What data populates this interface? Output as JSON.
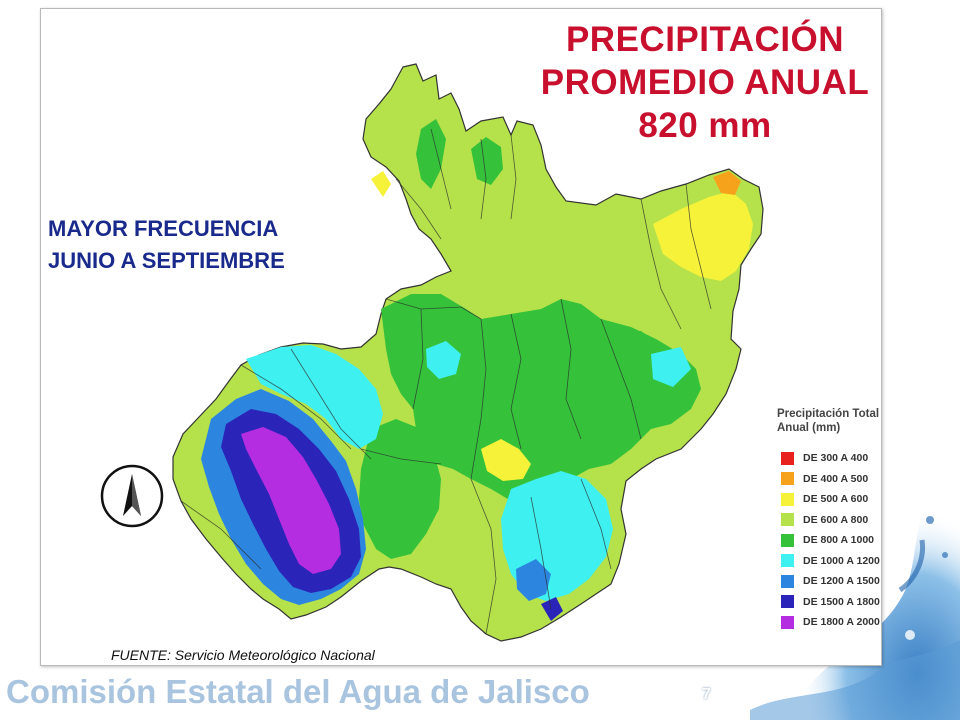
{
  "slide": {
    "title_lines": [
      "PRECIPITACIÓN",
      "PROMEDIO ANUAL",
      "820 mm"
    ],
    "frequency_lines": [
      "MAYOR FRECUENCIA",
      "JUNIO A SEPTIEMBRE"
    ],
    "source": "FUENTE: Servicio Meteorológico Nacional",
    "footer_brand": "Comisión Estatal del Agua de Jalisco",
    "page_number": "7"
  },
  "legend": {
    "title_lines": [
      "Precipitación Total",
      "Anual (mm)"
    ],
    "items": [
      {
        "label": "DE 300 A 400",
        "color": "#e8201e"
      },
      {
        "label": "DE 400 A 500",
        "color": "#f7a21b"
      },
      {
        "label": "DE 500 A 600",
        "color": "#f6f23a"
      },
      {
        "label": "DE 600 A 800",
        "color": "#b5e24a"
      },
      {
        "label": "DE 800 A 1000",
        "color": "#35c23a"
      },
      {
        "label": "DE 1000 A 1200",
        "color": "#3ff0f0"
      },
      {
        "label": "DE 1200 A 1500",
        "color": "#2c86e0"
      },
      {
        "label": "DE 1500 A 1800",
        "color": "#2a24b8"
      },
      {
        "label": "DE 1800 A 2000",
        "color": "#b52de0"
      }
    ]
  },
  "map": {
    "colors": {
      "lightgreen": "#b5e24a",
      "green": "#35c23a",
      "yellow": "#f6f23a",
      "orange": "#f7a21b",
      "cyan": "#3ff0f0",
      "blue": "#2c86e0",
      "navy": "#2a24b8",
      "purple": "#b52de0"
    },
    "north_arrow_icon": "north-arrow-icon"
  }
}
